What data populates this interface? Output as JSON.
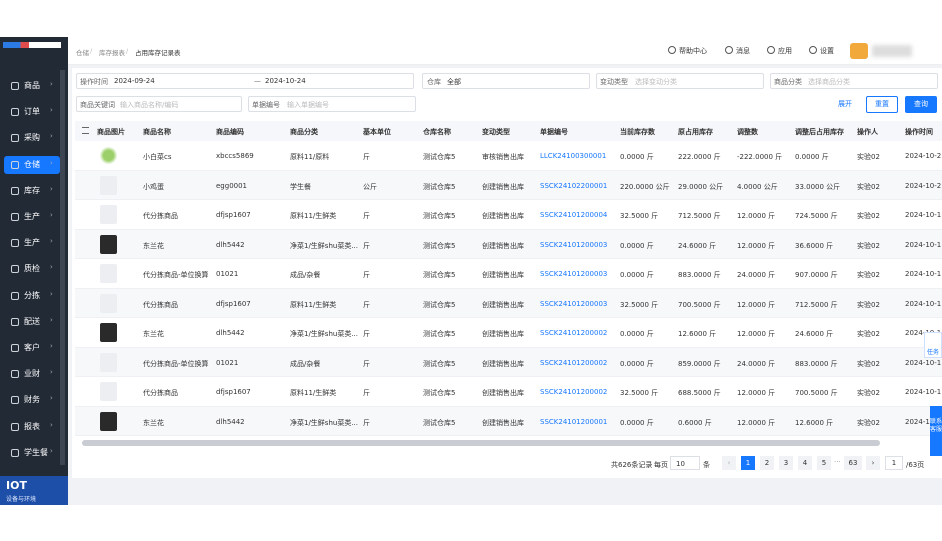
{
  "sidebar": {
    "items": [
      "商品",
      "订单",
      "采购",
      "仓储",
      "库存",
      "生产",
      "生产",
      "质检",
      "分拣",
      "配送",
      "客户",
      "业财",
      "财务",
      "报表",
      "学生餐"
    ],
    "footer": {
      "title": "IOT",
      "subtitle": "设备与环境"
    }
  },
  "header": {
    "breadcrumb": [
      "仓储",
      "库存报表",
      "占用库存记录表"
    ],
    "actions": [
      "帮助中心",
      "消息",
      "应用",
      "设置"
    ]
  },
  "filters": {
    "time_label": "操作时间",
    "start": "2024-09-24",
    "separator": "—",
    "end": "2024-10-24",
    "warehouse_label": "仓库",
    "warehouse": "全部",
    "change_label": "变动类型",
    "change_placeholder": "选择变动分类",
    "category_label": "商品分类",
    "category_placeholder": "选择商品分类",
    "keyword_label": "商品关键词",
    "keyword_placeholder": "输入商品名称/编码",
    "doc_label": "单据编号",
    "doc_placeholder": "输入单据编号",
    "expand": "展开",
    "reset": "重置",
    "search": "查询"
  },
  "table": {
    "columns": [
      "商品图片",
      "商品名称",
      "商品编码",
      "商品分类",
      "基本单位",
      "仓库名称",
      "变动类型",
      "单据编号",
      "当前库存数",
      "原占用库存",
      "调整数",
      "调整后占用库存",
      "操作人",
      "操作时间"
    ],
    "rows": [
      [
        "小白菜cs",
        "xbccs5869",
        "原料11/原料",
        "斤",
        "测试仓库5",
        "审核销售出库",
        "LLCK24100300001",
        "0.0000 斤",
        "222.0000 斤",
        "-222.0000 斤",
        "0.0000 斤",
        "实验02",
        "2024-10-2"
      ],
      [
        "小鸡蛋",
        "egg0001",
        "学生餐",
        "公斤",
        "测试仓库5",
        "创建销售出库",
        "SSCK24102200001",
        "220.0000 公斤",
        "29.0000 公斤",
        "4.0000 公斤",
        "33.0000 公斤",
        "实验02",
        "2024-10-2"
      ],
      [
        "代分拣商品",
        "dfjsp1607",
        "原料11/生鲜类",
        "斤",
        "测试仓库5",
        "创建销售出库",
        "SSCK24101200004",
        "32.5000 斤",
        "712.5000 斤",
        "12.0000 斤",
        "724.5000 斤",
        "实验02",
        "2024-10-1"
      ],
      [
        "东兰花",
        "dlh5442",
        "净菜1/生鲜shu菜类...",
        "斤",
        "测试仓库5",
        "创建销售出库",
        "SSCK24101200003",
        "0.0000 斤",
        "24.6000 斤",
        "12.0000 斤",
        "36.6000 斤",
        "实验02",
        "2024-10-1"
      ],
      [
        "代分拣商品-单位换算",
        "01021",
        "成品/杂餐",
        "斤",
        "测试仓库5",
        "创建销售出库",
        "SSCK24101200003",
        "0.0000 斤",
        "883.0000 斤",
        "24.0000 斤",
        "907.0000 斤",
        "实验02",
        "2024-10-1"
      ],
      [
        "代分拣商品",
        "dfjsp1607",
        "原料11/生鲜类",
        "斤",
        "测试仓库5",
        "创建销售出库",
        "SSCK24101200003",
        "32.5000 斤",
        "700.5000 斤",
        "12.0000 斤",
        "712.5000 斤",
        "实验02",
        "2024-10-1"
      ],
      [
        "东兰花",
        "dlh5442",
        "净菜1/生鲜shu菜类...",
        "斤",
        "测试仓库5",
        "创建销售出库",
        "SSCK24101200002",
        "0.0000 斤",
        "12.6000 斤",
        "12.0000 斤",
        "24.6000 斤",
        "实验02",
        "2024-10-1"
      ],
      [
        "代分拣商品-单位换算",
        "01021",
        "成品/杂餐",
        "斤",
        "测试仓库5",
        "创建销售出库",
        "SSCK24101200002",
        "0.0000 斤",
        "859.0000 斤",
        "24.0000 斤",
        "883.0000 斤",
        "实验02",
        "2024-10-1"
      ],
      [
        "代分拣商品",
        "dfjsp1607",
        "原料11/生鲜类",
        "斤",
        "测试仓库5",
        "创建销售出库",
        "SSCK24101200002",
        "32.5000 斤",
        "688.5000 斤",
        "12.0000 斤",
        "700.5000 斤",
        "实验02",
        "2024-10-1"
      ],
      [
        "东兰花",
        "dlh5442",
        "净菜1/生鲜shu菜类...",
        "斤",
        "测试仓库5",
        "创建销售出库",
        "SSCK24101200001",
        "0.0000 斤",
        "0.6000 斤",
        "12.0000 斤",
        "12.6000 斤",
        "实验02",
        "2024-10-1"
      ]
    ]
  },
  "pagination": {
    "total": "共626条记录",
    "per_page_label": "每页",
    "per_page": "10",
    "per_page_unit": "条",
    "pages": [
      "1",
      "2",
      "3",
      "4",
      "5",
      "63"
    ],
    "ellipsis": "···",
    "jump": "1",
    "page_count": "/63页"
  },
  "side_tabs": [
    "任务",
    "联系客服"
  ]
}
